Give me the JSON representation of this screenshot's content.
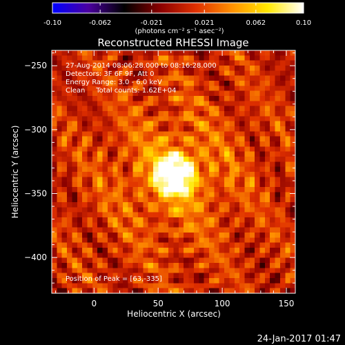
{
  "chart_data": {
    "type": "heatmap",
    "title": "Reconstructed RHESSI Image",
    "xlabel": "Heliocentric X (arcsec)",
    "ylabel": "Heliocentric Y (arcsec)",
    "xlim": [
      -33,
      157
    ],
    "ylim": [
      -428,
      -238
    ],
    "x_ticks": [
      0,
      50,
      100,
      150
    ],
    "y_ticks": [
      -250,
      -300,
      -350,
      -400
    ],
    "colorbar": {
      "range": [
        -0.1,
        0.1
      ],
      "tick_values": [
        -0.1,
        -0.062,
        -0.021,
        0.021,
        0.062,
        0.1
      ],
      "tick_labels": [
        "-0.10",
        "-0.062",
        "-0.021",
        "0.021",
        "0.062",
        "0.10"
      ],
      "units": "(photons cm⁻² s⁻¹ asec⁻²)",
      "colormap": [
        "#0000ff",
        "#4b00a0",
        "#000000",
        "#8a0000",
        "#e03000",
        "#ff9000",
        "#ffe800",
        "#ffffff"
      ]
    },
    "annotations": [
      "27-Aug-2014 08:06:28.000 to 08:16:28.000",
      "Detectors: 3F 6F 9F, Att 0",
      "Energy Range: 3.0 - 6.0 keV",
      "Clean     Total counts: 1.62E+04"
    ],
    "peak_label": "Position of Peak = [63,-335]",
    "peak": {
      "x": 63,
      "y": -335,
      "value": 0.1
    },
    "grid": false
  },
  "footer": {
    "timestamp": "24-Jan-2017 01:47"
  }
}
